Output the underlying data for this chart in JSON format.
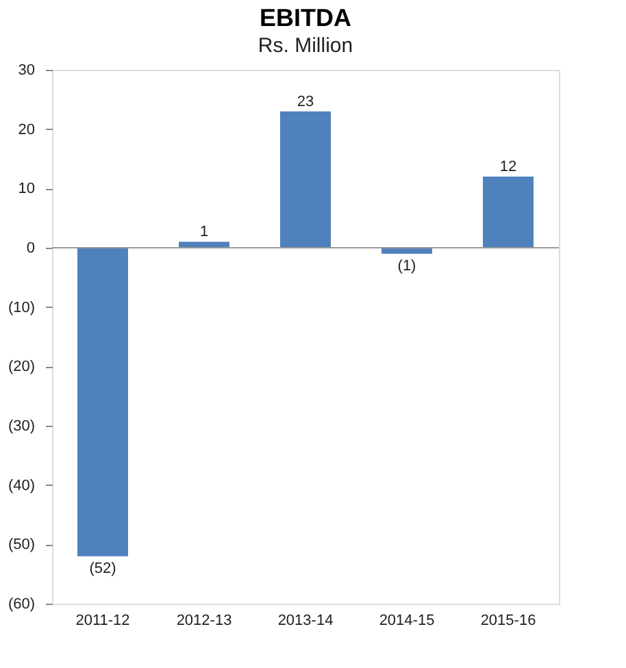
{
  "chart_data": {
    "type": "bar",
    "title": "EBITDA",
    "subtitle": "Rs. Million",
    "categories": [
      "2011-12",
      "2012-13",
      "2013-14",
      "2014-15",
      "2015-16"
    ],
    "values": [
      -52,
      1,
      23,
      -1,
      12
    ],
    "value_labels": [
      "(52)",
      "1",
      "23",
      "(1)",
      "12"
    ],
    "color": "#4f81bd",
    "ylim": [
      -60,
      30
    ],
    "yticks": [
      30,
      20,
      10,
      0,
      {
        "value": -10,
        "label": "(10)"
      },
      {
        "value": -20,
        "label": "(20)"
      },
      {
        "value": -30,
        "label": "(30)"
      },
      {
        "value": -40,
        "label": "(40)"
      },
      {
        "value": -50,
        "label": "(50)"
      },
      {
        "value": -60,
        "label": "(60)"
      }
    ],
    "ref_lines": [
      {
        "axis": "y",
        "value": 0,
        "color": "#999999"
      }
    ],
    "grid": false
  }
}
